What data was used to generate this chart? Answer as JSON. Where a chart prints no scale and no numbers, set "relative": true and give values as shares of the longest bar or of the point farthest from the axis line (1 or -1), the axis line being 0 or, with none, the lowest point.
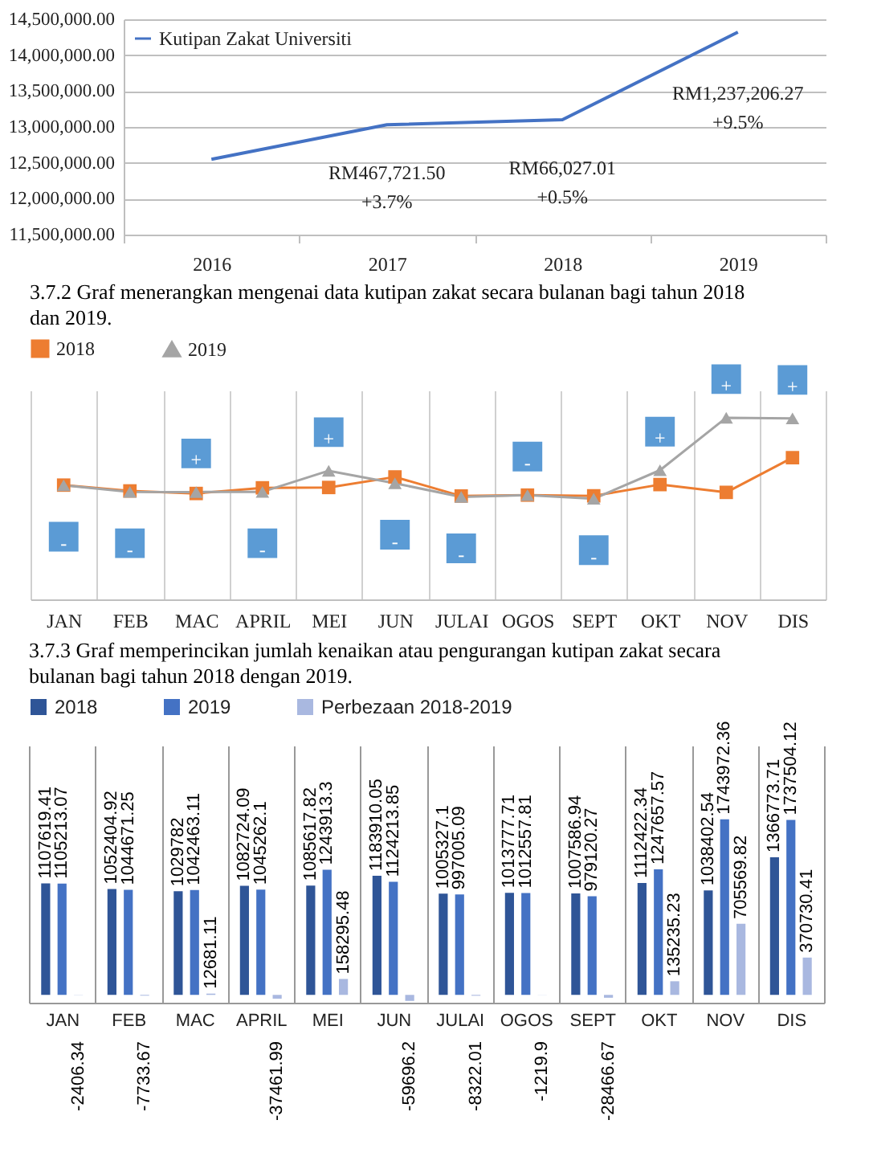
{
  "chart_data": [
    {
      "type": "line",
      "categories": [
        "2016",
        "2017",
        "2018",
        "2019"
      ],
      "series": [
        {
          "name": "Kutipan Zakat Universiti",
          "color": "#4472c4",
          "values": [
            12550000,
            13030000,
            13100000,
            14320000
          ]
        }
      ],
      "ylim": [
        11500000,
        14500000
      ],
      "yticks": [
        {
          "value": 11500000,
          "label": "11,500,000.00"
        },
        {
          "value": 12000000,
          "label": "12,000,000.00"
        },
        {
          "value": 12500000,
          "label": "12,500,000.00"
        },
        {
          "value": 13000000,
          "label": "13,000,000.00"
        },
        {
          "value": 13500000,
          "label": "13,500,000.00"
        },
        {
          "value": 14000000,
          "label": "14,000,000.00"
        },
        {
          "value": 14500000,
          "label": "14,500,000.00"
        }
      ],
      "grid": "y",
      "legend": "top left",
      "annotations": [
        "RM467,721.50",
        "+3.7%",
        "RM66,027.01",
        "+0.5%",
        "RM1,237,206.27",
        "+9.5%"
      ]
    },
    {
      "type": "line",
      "title": "3.7.2 Graf menerangkan mengenai data kutipan zakat secara bulanan bagi tahun 2018 dan 2019.",
      "categories": [
        "JAN",
        "FEB",
        "MAC",
        "APRIL",
        "MEI",
        "JUN",
        "JULAI",
        "OGOS",
        "SEPT",
        "OKT",
        "NOV",
        "DIS"
      ],
      "relative": true,
      "series": [
        {
          "name": "2018",
          "color": "#ed7d31",
          "marker": "square",
          "values": [
            0.629,
            0.597,
            0.583,
            0.614,
            0.616,
            0.674,
            0.569,
            0.574,
            0.57,
            0.632,
            0.589,
            0.78
          ]
        },
        {
          "name": "2019",
          "color": "#a5a5a5",
          "marker": "triangle",
          "values": [
            0.628,
            0.592,
            0.591,
            0.592,
            0.708,
            0.639,
            0.564,
            0.574,
            0.554,
            0.711,
            1,
            0.996
          ]
        }
      ],
      "grid": "x",
      "legend": "top",
      "annotations": [
        "-",
        "-",
        "+",
        "-",
        "+",
        "-",
        "-",
        "-",
        "-",
        "+",
        "+",
        "+"
      ]
    },
    {
      "type": "bar",
      "title": "3.7.3 Graf memperincikan jumlah kenaikan atau pengurangan kutipan zakat secara bulanan bagi tahun 2018 dengan 2019.",
      "categories": [
        "JAN",
        "FEB",
        "MAC",
        "APRIL",
        "MEI",
        "JUN",
        "JULAI",
        "OGOS",
        "SEPT",
        "OKT",
        "NOV",
        "DIS"
      ],
      "series": [
        {
          "name": "2018",
          "color": "#2f5597",
          "values": [
            1107619.41,
            1052404.92,
            1029782,
            1082724.09,
            1085617.82,
            1183910.05,
            1005327.1,
            1013777.71,
            1007586.94,
            1112422.34,
            1038402.54,
            1366773.71
          ]
        },
        {
          "name": "2019",
          "color": "#4472c4",
          "values": [
            1105213.07,
            1044671.25,
            1042463.11,
            1045262.1,
            1243913.3,
            1124213.85,
            997005.09,
            1012557.81,
            979120.27,
            1247657.57,
            1743972.36,
            1737504.12
          ]
        },
        {
          "name": "Perbezaan 2018-2019",
          "color": "#a9b8e0",
          "values": [
            -2406.34,
            -7733.67,
            12681.11,
            -37461.99,
            158295.48,
            -59696.2,
            -8322.01,
            -1219.9,
            -28466.67,
            135235.23,
            705569.82,
            370730.41
          ]
        }
      ],
      "data_labels": true,
      "grid": "x",
      "legend": "top",
      "tick_labels": "x"
    }
  ]
}
